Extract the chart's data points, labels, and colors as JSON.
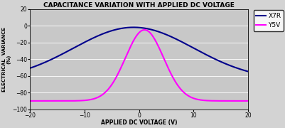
{
  "title": "CAPACITANCE VARIATION WITH APPLIED DC VOLTAGE",
  "xlabel": "APPLIED DC VOLTAGE (V)",
  "ylabel_line1": "ELECTRICAL  VARIANCE",
  "ylabel_line2": "(%)",
  "xlim": [
    -20,
    20
  ],
  "ylim": [
    -100,
    20
  ],
  "yticks": [
    20,
    0,
    -20,
    -40,
    -60,
    -80,
    -100
  ],
  "xticks": [
    -20,
    -10,
    0,
    10,
    20
  ],
  "x7r_color": "#00008B",
  "y5v_color": "#FF00FF",
  "plot_bg_color": "#C8C8C8",
  "fig_bg_color": "#D3D3D3",
  "legend_labels": [
    "X7R",
    "Y5V"
  ],
  "title_fontsize": 6.5,
  "label_fontsize": 5.5,
  "tick_fontsize": 5.5,
  "legend_fontsize": 6.5,
  "x7r_peak_x": -1.0,
  "x7r_peak_y": -2.0,
  "x7r_at_edge": -65.0,
  "y5v_peak_x": 1.0,
  "y5v_peak_y": -5.0,
  "y5v_at_edge": -90.0,
  "y5v_sigma": 3.5
}
